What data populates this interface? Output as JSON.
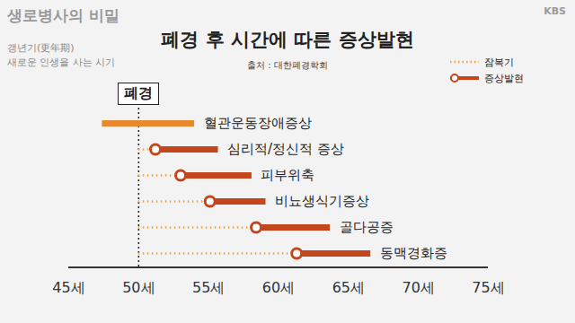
{
  "chart_data": {
    "type": "timeline",
    "title": "폐경 후 시간에 따른 증상발현",
    "subtitle": "출처 : 대한폐경학회",
    "annotations": [
      "생로병사의 비밀",
      "갱년기(更年期)",
      "새로운 인생을 사는 시기",
      "KBS"
    ],
    "menopause": {
      "label": "폐경",
      "value": 50
    },
    "categories": [
      "혈관운동장애증상",
      "심리적/정신적 증상",
      "피부위축",
      "비뇨생식기증상",
      "골다공증",
      "동맥경화증"
    ],
    "series": [
      {
        "name": "잠복기",
        "color": "#e9a64a",
        "line_style": "dotted",
        "start": [
          null,
          50,
          50,
          50,
          50,
          50
        ],
        "end": [
          null,
          51.2,
          53,
          55.1,
          58.4,
          61.3
        ]
      },
      {
        "name": "증상발현",
        "color": "#c4461c",
        "marker": "circle",
        "colors": [
          "#e8892e",
          "#c4461c",
          "#c4461c",
          "#c4461c",
          "#c4461c",
          "#c4461c"
        ],
        "start": [
          47.4,
          51.2,
          53,
          55.1,
          58.4,
          61.3
        ],
        "end": [
          54,
          55.7,
          58.1,
          59.1,
          63.7,
          66.6
        ]
      }
    ],
    "xlim": [
      45,
      75
    ],
    "xticks": [
      {
        "value": 45,
        "label": "45세"
      },
      {
        "value": 50,
        "label": "50세"
      },
      {
        "value": 55,
        "label": "55세"
      },
      {
        "value": 60,
        "label": "60세"
      },
      {
        "value": 65,
        "label": "65세"
      },
      {
        "value": 70,
        "label": "70세"
      },
      {
        "value": 75,
        "label": "75세"
      }
    ]
  }
}
